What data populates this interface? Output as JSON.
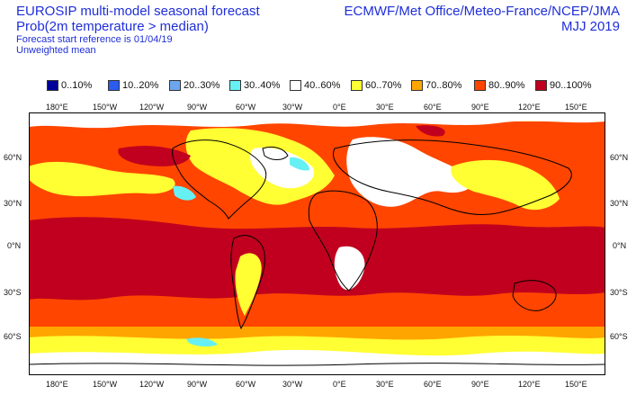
{
  "header": {
    "title_line1": "EUROSIP multi-model seasonal forecast",
    "title_line2": "Prob(2m temperature > median)",
    "line3": "Forecast start reference is 01/04/19",
    "line4": "Unweighted mean",
    "centres": "ECMWF/Met Office/Meteo-France/NCEP/JMA",
    "period": "MJJ 2019"
  },
  "legend": {
    "items": [
      {
        "label": "0..10%",
        "color": "#000099"
      },
      {
        "label": "10..20%",
        "color": "#2a5cf0"
      },
      {
        "label": "20..30%",
        "color": "#6da6ee"
      },
      {
        "label": "30..40%",
        "color": "#66f0f4"
      },
      {
        "label": "40..60%",
        "color": "#ffffff"
      },
      {
        "label": "60..70%",
        "color": "#ffff33"
      },
      {
        "label": "70..80%",
        "color": "#ffa500"
      },
      {
        "label": "80..90%",
        "color": "#ff4500"
      },
      {
        "label": "90..100%",
        "color": "#c0001e"
      }
    ]
  },
  "map": {
    "lon_labels": [
      "180°E",
      "150°W",
      "120°W",
      "90°W",
      "60°W",
      "30°W",
      "0°E",
      "30°E",
      "60°E",
      "90°E",
      "120°E",
      "150°E"
    ],
    "lat_labels": [
      "60°N",
      "30°N",
      "0°N",
      "30°S",
      "60°S"
    ],
    "colors": {
      "coast": "#000000",
      "frame": "#000000"
    }
  }
}
